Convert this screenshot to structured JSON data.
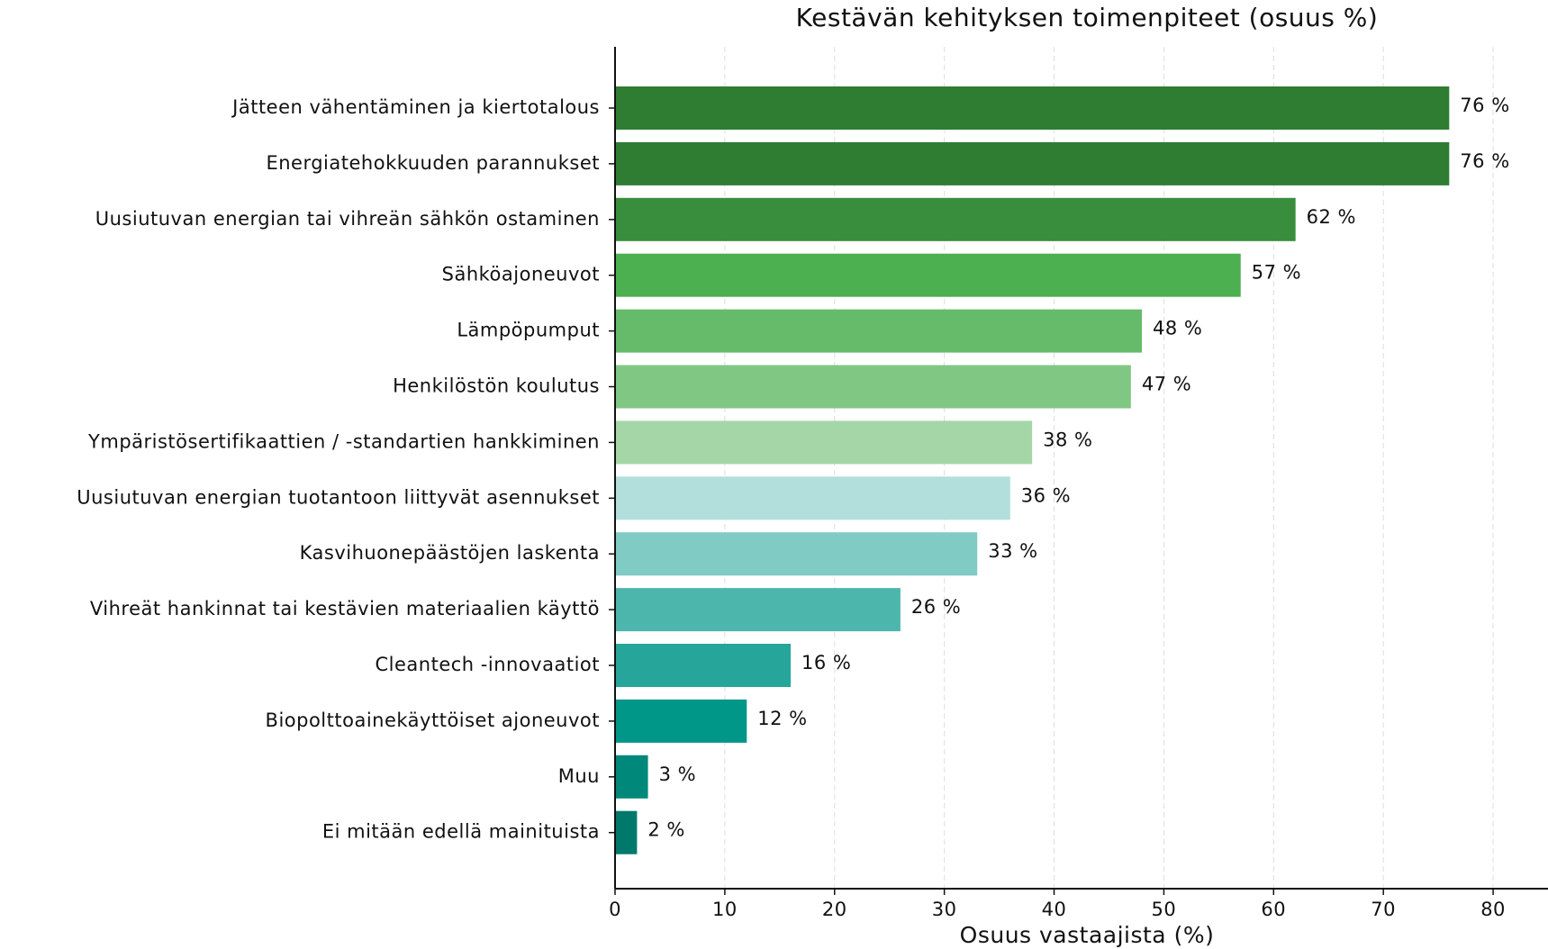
{
  "chart_data": {
    "type": "hbar",
    "title": "Kestävän kehityksen toimenpiteet (osuus %)",
    "x_label": "Osuus vastaajista (%)",
    "categories": [
      "Jätteen vähentäminen ja kiertotalous",
      "Energiatehokkuuden parannukset",
      "Uusiutuvan energian tai vihreän sähkön ostaminen",
      "Sähköajoneuvot",
      "Lämpöpumput",
      "Henkilöstön koulutus",
      "Ympäristösertifikaattien / -standartien hankkiminen",
      "Uusiutuvan energian tuotantoon liittyvät asennukset",
      "Kasvihuonepäästöjen laskenta",
      "Vihreät hankinnat tai kestävien materiaalien käyttö",
      "Cleantech -innovaatiot",
      "Biopolttoainekäyttöiset ajoneuvot",
      "Muu",
      "Ei mitään edellä mainituista"
    ],
    "values": [
      76,
      76,
      62,
      57,
      48,
      47,
      38,
      36,
      33,
      26,
      16,
      12,
      3,
      2
    ],
    "value_labels": [
      "76 %",
      "76 %",
      "62 %",
      "57 %",
      "48 %",
      "47 %",
      "38 %",
      "36 %",
      "33 %",
      "26 %",
      "16 %",
      "12 %",
      "3 %",
      "2 %"
    ],
    "colors": [
      "#2e7d32",
      "#2e7d32",
      "#388e3c",
      "#4caf50",
      "#66bb6a",
      "#81c784",
      "#a5d6a7",
      "#b2dfdb",
      "#80cbc4",
      "#4db6ac",
      "#26a69a",
      "#009688",
      "#00897b",
      "#00796b"
    ],
    "xlim": [
      0,
      85
    ],
    "xticks": [
      0,
      10,
      20,
      30,
      40,
      50,
      60,
      70,
      80
    ],
    "grid": true
  }
}
